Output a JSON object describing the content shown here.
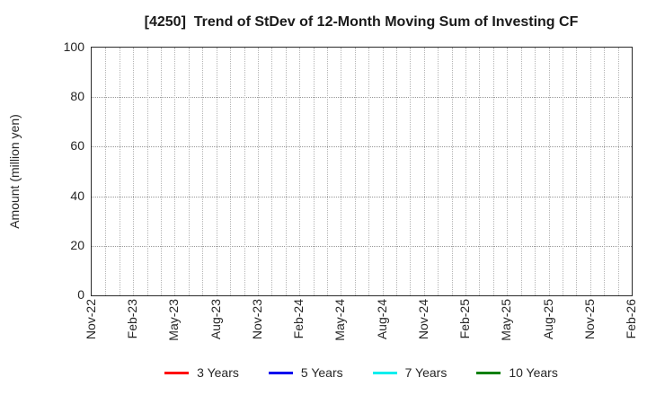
{
  "chart_data": {
    "type": "line",
    "title": "[4250]  Trend of StDev of 12-Month Moving Sum of Investing CF",
    "ylabel": "Amount (million yen)",
    "xlabel": "",
    "ylim": [
      0,
      100
    ],
    "yticks": [
      0,
      20,
      40,
      60,
      80,
      100
    ],
    "x_tick_labels": [
      "Nov-22",
      "Feb-23",
      "May-23",
      "Aug-23",
      "Nov-23",
      "Feb-24",
      "May-24",
      "Aug-24",
      "Nov-24",
      "Feb-25",
      "May-25",
      "Aug-25",
      "Nov-25",
      "Feb-26"
    ],
    "x_months_total": 40,
    "x_label_every": 3,
    "grid": true,
    "grid_style": "dotted",
    "legend_position": "bottom",
    "series": [
      {
        "name": "3 Years",
        "color": "#ff0000",
        "values": []
      },
      {
        "name": "5 Years",
        "color": "#0000ee",
        "values": []
      },
      {
        "name": "7 Years",
        "color": "#00eeee",
        "values": []
      },
      {
        "name": "10 Years",
        "color": "#008000",
        "values": []
      }
    ],
    "note": "Plot area is empty: no data points are drawn for any series within the visible range."
  },
  "style_colors": {
    "frame": "#2a2a2a",
    "grid_vertical": "#b5b5b5",
    "grid_horizontal": "#979797",
    "text": "#262626",
    "background": "#ffffff"
  }
}
